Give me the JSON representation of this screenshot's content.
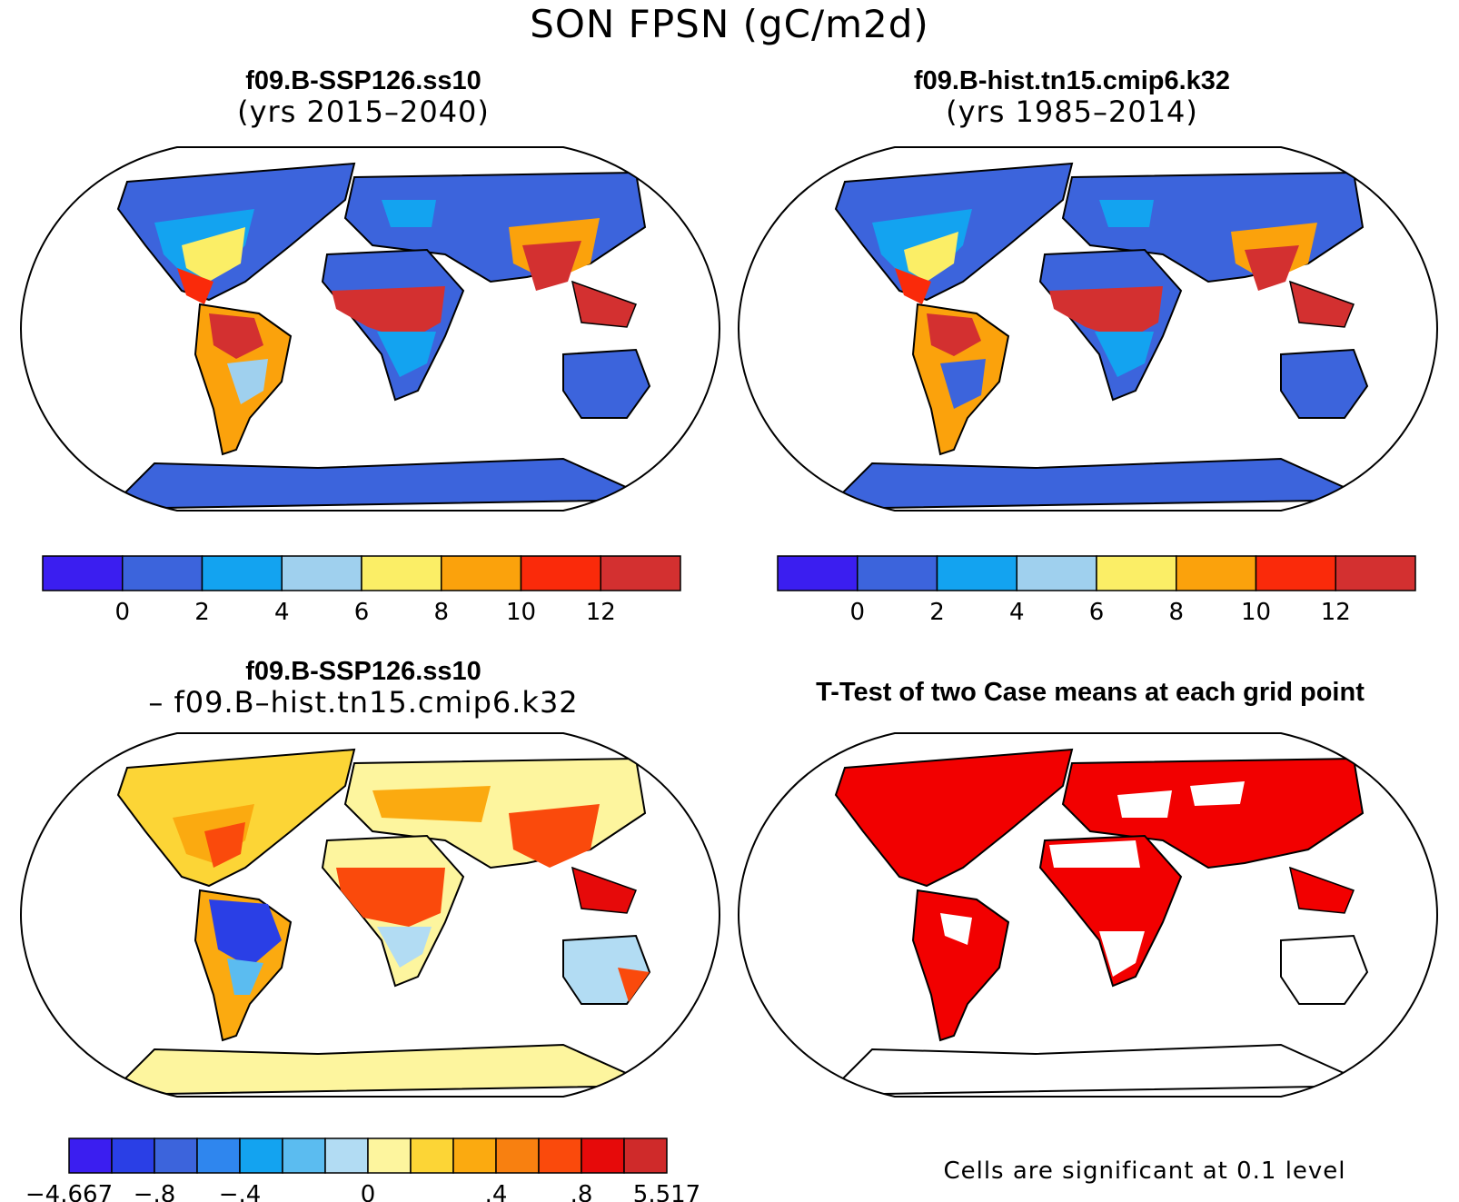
{
  "main_title": "SON FPSN (gC/m2d)",
  "panels": [
    {
      "title": "f09.B-SSP126.ss10",
      "subtitle": "(yrs 2015–2040)"
    },
    {
      "title": "f09.B-hist.tn15.cmip6.k32",
      "subtitle": "(yrs 1985–2014)"
    },
    {
      "title": "f09.B-SSP126.ss10",
      "subtitle": "– f09.B–hist.tn15.cmip6.k32"
    },
    {
      "title": "T-Test of two Case means at each grid point",
      "subtitle": ""
    }
  ],
  "colorbar_abs": {
    "colors": [
      "#3b1ef0",
      "#3c64dc",
      "#13a3f0",
      "#9fd0ee",
      "#fbee66",
      "#fba20c",
      "#fa2a0a",
      "#d33030"
    ],
    "labels": [
      "0",
      "2",
      "4",
      "6",
      "8",
      "10",
      "12"
    ]
  },
  "colorbar_diff": {
    "colors": [
      "#3b1ef0",
      "#2a3fe6",
      "#3c64dc",
      "#2f86ee",
      "#13a3f0",
      "#5bbcf0",
      "#b2dcf3",
      "#fdf59e",
      "#fcd536",
      "#fbaa10",
      "#f88010",
      "#fa4a0c",
      "#e60a0a",
      "#cf2a2a"
    ],
    "labels": [
      "−4.667",
      "−.8",
      "−.4",
      "0",
      ".4",
      ".8",
      "5.517"
    ]
  },
  "significance_note": "Cells are significant at 0.1 level",
  "colors": {
    "land_mask_red": "#f20000",
    "coastline": "#000000"
  }
}
